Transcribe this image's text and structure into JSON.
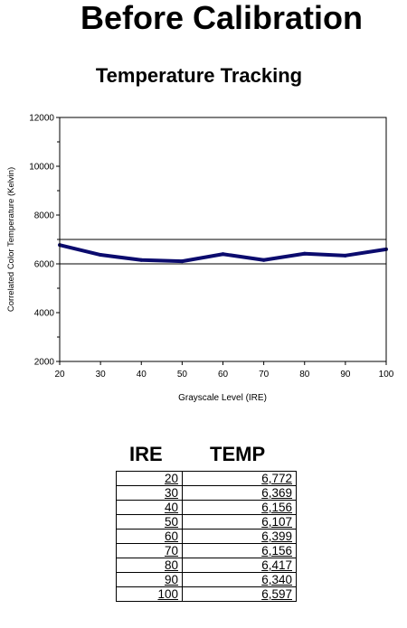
{
  "title": "Before Calibration",
  "subtitle": "Temperature Tracking",
  "chart_data": {
    "type": "line",
    "title": "Temperature Tracking",
    "xlabel": "Grayscale Level (IRE)",
    "ylabel": "Correlated Color Temperature (Kelvin)",
    "xlim": [
      20,
      100
    ],
    "ylim": [
      2000,
      12000
    ],
    "x_ticks": [
      20,
      30,
      40,
      50,
      60,
      70,
      80,
      90,
      100
    ],
    "y_ticks": [
      2000,
      4000,
      6000,
      8000,
      10000,
      12000
    ],
    "reference_lines": [
      6000,
      7000
    ],
    "series": [
      {
        "x": [
          20,
          30,
          40,
          50,
          60,
          70,
          80,
          90,
          100
        ],
        "values": [
          6772,
          6369,
          6156,
          6107,
          6399,
          6156,
          6417,
          6340,
          6597
        ],
        "color": "#0b0b6e"
      }
    ],
    "grid": false
  },
  "table": {
    "headers": [
      "IRE",
      "TEMP"
    ],
    "rows": [
      [
        "20",
        "6,772"
      ],
      [
        "30",
        "6,369"
      ],
      [
        "40",
        "6,156"
      ],
      [
        "50",
        "6,107"
      ],
      [
        "60",
        "6,399"
      ],
      [
        "70",
        "6,156"
      ],
      [
        "80",
        "6,417"
      ],
      [
        "90",
        "6,340"
      ],
      [
        "100",
        "6,597"
      ]
    ]
  }
}
